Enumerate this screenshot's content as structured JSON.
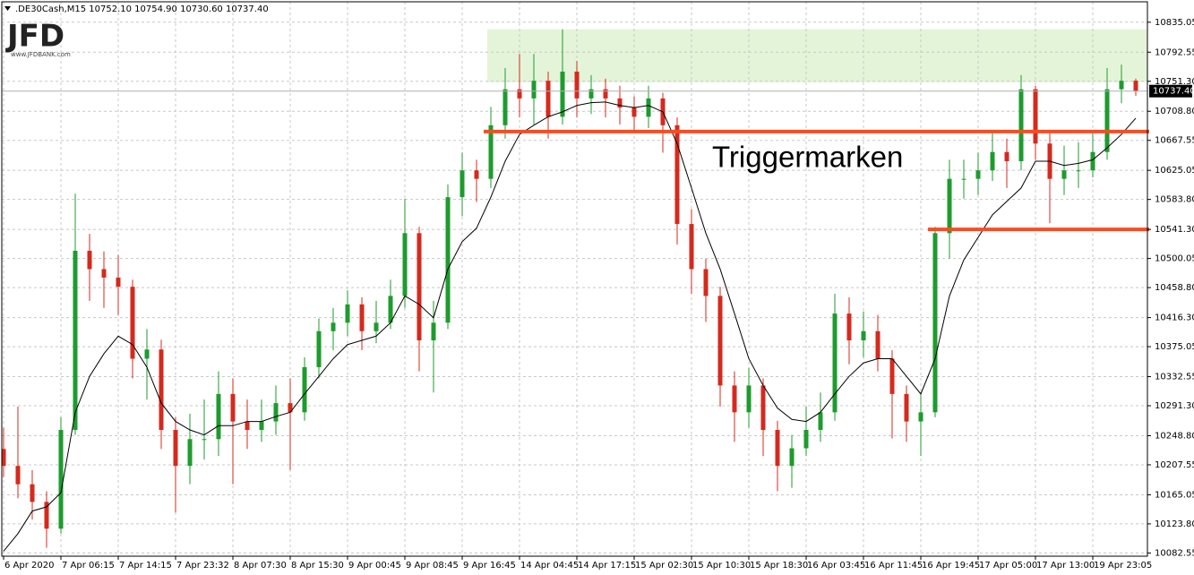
{
  "chart_data": {
    "type": "candlestick",
    "header": ".DE30Cash,M15  10752.10 10754.90 10730.60 10737.40",
    "logo": "JFD",
    "logo_url": "www.JFDBANK.com",
    "annotation": "Triggermarken",
    "bull_color": "#1e9b2e",
    "bear_color": "#d42a1e",
    "grid": true,
    "ylim": [
      10078,
      10864
    ],
    "yticks": [
      10082.55,
      {
        "value": 10123.8,
        "label": "10123.80"
      },
      10165.05,
      10207.55,
      {
        "value": 10248.8,
        "label": "10248.80"
      },
      {
        "value": 10291.3,
        "label": "10291.30"
      },
      10332.55,
      10375.05,
      {
        "value": 10416.3,
        "label": "10416.30"
      },
      {
        "value": 10458.8,
        "label": "10458.80"
      },
      10500.05,
      {
        "value": 10541.3,
        "label": "10541.30"
      },
      {
        "value": 10583.8,
        "label": "10583.80"
      },
      10625.05,
      10667.55,
      {
        "value": 10708.8,
        "label": "10708.80"
      },
      {
        "value": 10751.3,
        "label": "10751.30"
      },
      10792.55,
      10835.05
    ],
    "current_price": {
      "value": 10737.4,
      "label": "10737.40"
    },
    "categories": [
      "6 Apr 2020",
      null,
      null,
      null,
      "7 Apr 06:15",
      null,
      null,
      null,
      "7 Apr 14:15",
      null,
      null,
      null,
      "7 Apr 23:32",
      null,
      null,
      null,
      "8 Apr 07:30",
      null,
      null,
      null,
      "8 Apr 15:30",
      null,
      null,
      null,
      "9 Apr 00:45",
      null,
      null,
      null,
      "9 Apr 08:45",
      null,
      null,
      null,
      "9 Apr 16:45",
      null,
      null,
      null,
      "14 Apr 04:45",
      null,
      null,
      null,
      "14 Apr 17:15",
      null,
      null,
      null,
      "15 Apr 02:30",
      null,
      null,
      null,
      "15 Apr 10:30",
      null,
      null,
      null,
      "15 Apr 18:30",
      null,
      null,
      null,
      "16 Apr 03:45",
      null,
      null,
      null,
      "16 Apr 11:45",
      null,
      null,
      null,
      "16 Apr 19:45",
      null,
      null,
      null,
      "17 Apr 05:00",
      null,
      null,
      null,
      "17 Apr 13:00",
      null,
      null,
      null,
      "19 Apr 23:05",
      null,
      null,
      null
    ],
    "open": [
      10230,
      10206,
      10180,
      10155,
      10117,
      10257,
      10511,
      10485,
      10473,
      10460,
      10358,
      10371,
      10257,
      10206,
      10244,
      10244,
      10308,
      10269,
      10257,
      10269,
      10295,
      10282,
      10346,
      10397,
      10409,
      10435,
      10397,
      10409,
      10447,
      10536,
      10384,
      10409,
      10587,
      10625,
      10613,
      10689,
      10740,
      10727,
      10752,
      10701,
      10765,
      10727,
      10740,
      10727,
      10714,
      10701,
      10727,
      10689,
      10549,
      10485,
      10447,
      10320,
      10282,
      10320,
      10257,
      10206,
      10231,
      10257,
      10282,
      10422,
      10384,
      10397,
      10358,
      10308,
      10269,
      10282,
      10536,
      10613,
      10613,
      10625,
      10651,
      10638,
      10740,
      10663,
      10613,
      10625,
      10625,
      10651,
      10740,
      10752.1
    ],
    "high": [
      10260,
      10290,
      10200,
      10170,
      10275,
      10592,
      10535,
      10510,
      10505,
      10470,
      10400,
      10385,
      10275,
      10280,
      10300,
      10340,
      10330,
      10300,
      10300,
      10320,
      10330,
      10360,
      10415,
      10430,
      10455,
      10445,
      10440,
      10470,
      10585,
      10545,
      10440,
      10605,
      10650,
      10640,
      10715,
      10770,
      10790,
      10790,
      10765,
      10825,
      10780,
      10760,
      10755,
      10745,
      10730,
      10745,
      10735,
      10700,
      10570,
      10500,
      10460,
      10340,
      10345,
      10330,
      10270,
      10250,
      10290,
      10310,
      10450,
      10445,
      10425,
      10420,
      10370,
      10320,
      10310,
      10545,
      10640,
      10640,
      10650,
      10680,
      10670,
      10760,
      10745,
      10680,
      10660,
      10665,
      10680,
      10770,
      10775,
      10754.9
    ],
    "low": [
      10190,
      10160,
      10130,
      10090,
      10110,
      10250,
      10440,
      10430,
      10420,
      10330,
      10300,
      10230,
      10140,
      10180,
      10215,
      10220,
      10180,
      10230,
      10240,
      10250,
      10200,
      10270,
      10330,
      10370,
      10390,
      10370,
      10380,
      10400,
      10430,
      10340,
      10310,
      10400,
      10560,
      10580,
      10600,
      10670,
      10700,
      10690,
      10670,
      10690,
      10700,
      10705,
      10700,
      10690,
      10680,
      10685,
      10650,
      10520,
      10450,
      10410,
      10290,
      10240,
      10260,
      10220,
      10170,
      10175,
      10220,
      10240,
      10270,
      10350,
      10360,
      10340,
      10245,
      10240,
      10220,
      10275,
      10500,
      10585,
      10590,
      10610,
      10600,
      10625,
      10640,
      10550,
      10590,
      10600,
      10615,
      10640,
      10720,
      10730.6
    ],
    "close": [
      10206,
      10180,
      10155,
      10117,
      10257,
      10511,
      10485,
      10473,
      10460,
      10358,
      10371,
      10257,
      10206,
      10244,
      10244,
      10308,
      10269,
      10257,
      10269,
      10295,
      10282,
      10346,
      10397,
      10409,
      10435,
      10397,
      10409,
      10447,
      10536,
      10384,
      10409,
      10587,
      10625,
      10613,
      10689,
      10740,
      10727,
      10752,
      10701,
      10765,
      10727,
      10740,
      10727,
      10714,
      10701,
      10727,
      10689,
      10549,
      10485,
      10447,
      10320,
      10282,
      10320,
      10257,
      10206,
      10231,
      10257,
      10282,
      10422,
      10384,
      10397,
      10358,
      10308,
      10269,
      10282,
      10536,
      10613,
      10613,
      10625,
      10651,
      10638,
      10740,
      10663,
      10613,
      10625,
      10625,
      10651,
      10740,
      10752,
      10737.4
    ],
    "ma": {
      "color": "#000000",
      "values": [
        10085,
        10110,
        10142,
        10148,
        10168,
        10282,
        10333,
        10365,
        10390,
        10378,
        10346,
        10295,
        10269,
        10257,
        10250,
        10263,
        10263,
        10269,
        10269,
        10276,
        10282,
        10308,
        10333,
        10358,
        10378,
        10384,
        10390,
        10409,
        10447,
        10435,
        10416,
        10485,
        10524,
        10543,
        10587,
        10638,
        10676,
        10689,
        10701,
        10708,
        10717,
        10721,
        10722,
        10717,
        10714,
        10717,
        10708,
        10663,
        10600,
        10536,
        10485,
        10422,
        10358,
        10320,
        10288,
        10272,
        10269,
        10282,
        10308,
        10333,
        10352,
        10358,
        10358,
        10333,
        10308,
        10358,
        10447,
        10498,
        10530,
        10562,
        10581,
        10600,
        10638,
        10638,
        10632,
        10635,
        10640,
        10657,
        10676,
        10699
      ]
    },
    "zone": {
      "from": 10750,
      "to": 10825,
      "start": 34,
      "color": "#e4f4d9"
    },
    "levels": [
      {
        "value": 10680,
        "start": 34,
        "color": "#ff4a1c"
      },
      {
        "value": 10541.3,
        "start": 65,
        "color": "#ff4a1c"
      }
    ]
  }
}
